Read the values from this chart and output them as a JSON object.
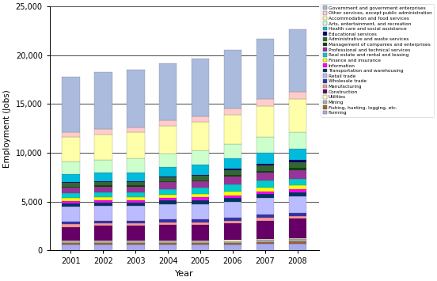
{
  "years": [
    2001,
    2002,
    2003,
    2004,
    2005,
    2006,
    2007,
    2008
  ],
  "sectors": [
    "Farming",
    "Fishing, hunting, logging, etc.",
    "Mining",
    "Utilities",
    "Construction",
    "Manufacturing",
    "Wholesale trade",
    "Retail trade",
    "Transportation and warehousing",
    "Information",
    "Finance and insurance",
    "Real estate and rental and leasing",
    "Professional and technical services",
    "Management of companies and enterprises",
    "Administrative and waste services",
    "Educational services",
    "Health care and social assistance",
    "Arts, entertainment, and recreation",
    "Accommodation and food services",
    "Other services, except public administration",
    "Government and government enterprises"
  ],
  "colors": [
    "#AAAAEE",
    "#996633",
    "#AAAAAA",
    "#FFFFCC",
    "#660066",
    "#FF9999",
    "#3333AA",
    "#BBBBFF",
    "#003366",
    "#FF00FF",
    "#FFFF00",
    "#00CCCC",
    "#993399",
    "#004400",
    "#336633",
    "#000066",
    "#00BBDD",
    "#CCFFCC",
    "#FFFFAA",
    "#FFCCCC",
    "#AABBDD"
  ],
  "values": {
    "Farming": [
      600,
      600,
      600,
      600,
      600,
      600,
      700,
      700
    ],
    "Fishing, hunting, logging, etc.": [
      150,
      150,
      150,
      150,
      150,
      150,
      150,
      200
    ],
    "Mining": [
      150,
      150,
      150,
      150,
      150,
      200,
      200,
      250
    ],
    "Utilities": [
      100,
      100,
      100,
      100,
      100,
      100,
      100,
      100
    ],
    "Construction": [
      1400,
      1500,
      1500,
      1600,
      1600,
      1700,
      1900,
      2000
    ],
    "Manufacturing": [
      300,
      300,
      300,
      300,
      300,
      300,
      300,
      300
    ],
    "Wholesale trade": [
      250,
      250,
      250,
      250,
      250,
      300,
      300,
      300
    ],
    "Retail trade": [
      1500,
      1500,
      1500,
      1600,
      1600,
      1600,
      1700,
      1700
    ],
    "Transportation and warehousing": [
      350,
      350,
      350,
      350,
      400,
      400,
      400,
      400
    ],
    "Information": [
      250,
      250,
      250,
      250,
      300,
      300,
      300,
      300
    ],
    "Finance and insurance": [
      300,
      300,
      300,
      350,
      350,
      400,
      400,
      400
    ],
    "Real estate and rental and leasing": [
      500,
      500,
      500,
      600,
      600,
      700,
      700,
      700
    ],
    "Professional and technical services": [
      600,
      600,
      600,
      700,
      700,
      800,
      800,
      900
    ],
    "Management of companies and enterprises": [
      100,
      100,
      100,
      100,
      100,
      150,
      200,
      200
    ],
    "Administrative and waste services": [
      350,
      350,
      350,
      400,
      450,
      500,
      550,
      600
    ],
    "Educational services": [
      100,
      100,
      100,
      100,
      100,
      150,
      200,
      200
    ],
    "Health care and social assistance": [
      800,
      900,
      900,
      950,
      1000,
      1050,
      1100,
      1150
    ],
    "Arts, entertainment, and recreation": [
      1300,
      1300,
      1400,
      1400,
      1500,
      1500,
      1600,
      1700
    ],
    "Accommodation and food services": [
      2500,
      2600,
      2700,
      2800,
      2900,
      3000,
      3200,
      3400
    ],
    "Other services, except public administration": [
      500,
      500,
      500,
      550,
      600,
      650,
      700,
      750
    ],
    "Government and government enterprises": [
      5700,
      5900,
      5900,
      5900,
      5900,
      6000,
      6200,
      6400
    ]
  },
  "xlabel": "Year",
  "ylabel": "Employment (Jobs)",
  "ylim": [
    0,
    25000
  ],
  "yticks": [
    0,
    5000,
    10000,
    15000,
    20000,
    25000
  ]
}
